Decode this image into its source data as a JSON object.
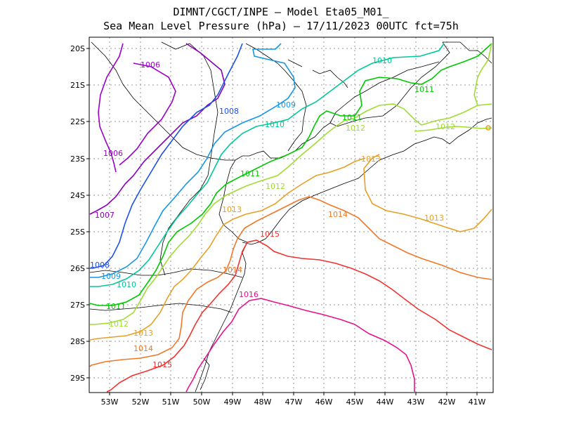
{
  "title_line1": "DIMNT/CGCT/INPE –  Model Eta05_M01_",
  "title_line2": "Sea Mean Level Pressure (hPa) – 17/11/2023 00UTC fct=75h",
  "lat_labels": [
    "20S",
    "21S",
    "22S",
    "23S",
    "24S",
    "25S",
    "26S",
    "27S",
    "28S",
    "29S"
  ],
  "lon_labels": [
    "53W",
    "52W",
    "51W",
    "50W",
    "49W",
    "48W",
    "47W",
    "46W",
    "45W",
    "44W",
    "43W",
    "42W",
    "41W"
  ],
  "colors": {
    "1006": "#9a00c8",
    "1007": "#8a00b8",
    "1008": "#1e50e6",
    "1009": "#1496e6",
    "1010": "#00c896",
    "1011": "#00c800",
    "1012": "#a0dc32",
    "1013": "#e6a028",
    "1014": "#f07828",
    "1015": "#f03232",
    "1016": "#e6148c"
  },
  "contour_labels": [
    {
      "key": "1006a",
      "text": "1006"
    },
    {
      "key": "1006b",
      "text": "1006"
    },
    {
      "key": "1007",
      "text": "1007"
    },
    {
      "key": "1008a",
      "text": "1008"
    },
    {
      "key": "1008b",
      "text": "1008"
    },
    {
      "key": "1009a",
      "text": "1009"
    },
    {
      "key": "1009b",
      "text": "1009"
    },
    {
      "key": "1010a",
      "text": "1010"
    },
    {
      "key": "1010b",
      "text": "1010"
    },
    {
      "key": "1010c",
      "text": "1010"
    },
    {
      "key": "1011a",
      "text": "1011"
    },
    {
      "key": "1011b",
      "text": "1011"
    },
    {
      "key": "1011c",
      "text": "1011"
    },
    {
      "key": "1011d",
      "text": "1011"
    },
    {
      "key": "1012a",
      "text": "1012"
    },
    {
      "key": "1012b",
      "text": "1012"
    },
    {
      "key": "1012c",
      "text": "1012"
    },
    {
      "key": "1012d",
      "text": "1012"
    },
    {
      "key": "1013a",
      "text": "1013"
    },
    {
      "key": "1013b",
      "text": "1013"
    },
    {
      "key": "1013c",
      "text": "1013"
    },
    {
      "key": "1013d",
      "text": "1013"
    },
    {
      "key": "1014a",
      "text": "1014"
    },
    {
      "key": "1014b",
      "text": "1014"
    },
    {
      "key": "1014c",
      "text": "1014"
    },
    {
      "key": "1015a",
      "text": "1015"
    },
    {
      "key": "1015b",
      "text": "1015"
    },
    {
      "key": "1016",
      "text": "1016"
    }
  ]
}
